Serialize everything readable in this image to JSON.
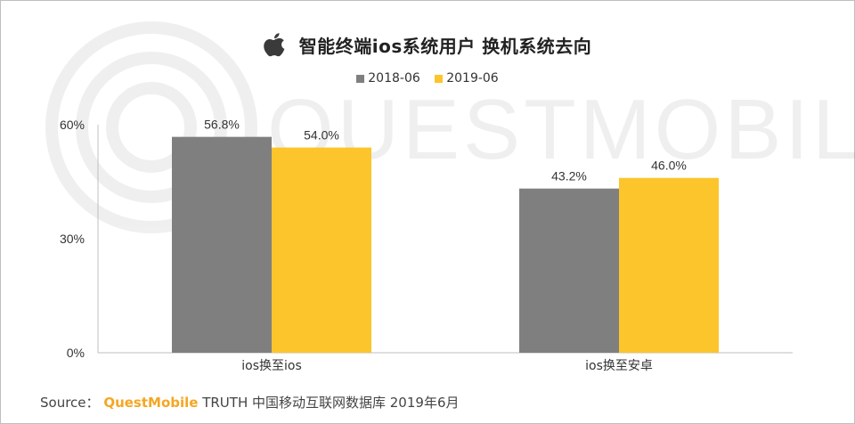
{
  "title": "智能终端ios系统用户 换机系统去向",
  "icons": {
    "brand": "apple-logo-icon",
    "watermark": "questmobile-watermark"
  },
  "watermark_text": "QUESTMOBILE",
  "colors": {
    "series_2018": "#7f7f7f",
    "series_2019": "#fcc52c",
    "axis": "#bfbfbf",
    "text": "#333333",
    "brand_orange": "#f5a623"
  },
  "source": {
    "label": "Source：",
    "brand": "QuestMobile",
    "text": " TRUTH 中国移动互联网数据库 2019年6月"
  },
  "chart_data": {
    "type": "bar",
    "categories": [
      "ios换至ios",
      "ios换至安卓"
    ],
    "series": [
      {
        "name": "2018-06",
        "values": [
          56.8,
          43.2
        ],
        "labels": [
          "56.8%",
          "43.2%"
        ],
        "color": "#7f7f7f"
      },
      {
        "name": "2019-06",
        "values": [
          54.0,
          46.0
        ],
        "labels": [
          "54.0%",
          "46.0%"
        ],
        "color": "#fcc52c"
      }
    ],
    "yticks": [
      "0%",
      "30%",
      "60%"
    ],
    "ytick_values": [
      0,
      30,
      60
    ],
    "ylim": [
      0,
      60
    ],
    "grid": false,
    "legend": "top-center"
  }
}
